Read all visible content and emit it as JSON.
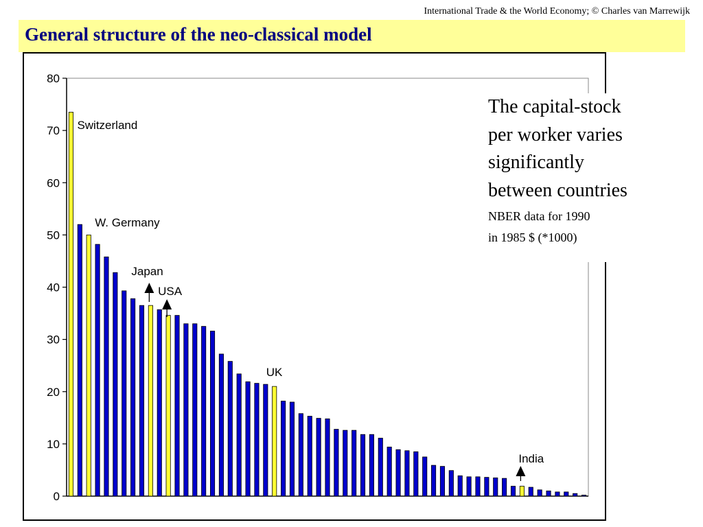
{
  "header": {
    "credit": "International Trade & the World Economy;  © Charles van Marrewijk",
    "title": "General structure of the neo-classical model"
  },
  "note": {
    "headline": "The capital-stock\nper worker varies\nsignificantly\nbetween countries",
    "source": "NBER data for 1990",
    "units": "in 1985 $ (*1000)"
  },
  "colors": {
    "bar_default": "#0000cc",
    "bar_highlight": "#ffff33",
    "title_bg": "#ffff99",
    "title_text": "#000080"
  },
  "chart_data": {
    "type": "bar",
    "ylim": [
      0,
      80
    ],
    "yticks": [
      0,
      10,
      20,
      30,
      40,
      50,
      60,
      70,
      80
    ],
    "ytick_labels": [
      "0",
      "10",
      "20",
      "30",
      "40",
      "50",
      "60",
      "70",
      "80"
    ],
    "grid": false,
    "values": [
      73.5,
      52.0,
      50.0,
      48.2,
      45.8,
      42.8,
      39.3,
      37.8,
      36.5,
      36.5,
      35.7,
      34.6,
      34.6,
      33.0,
      33.0,
      32.5,
      31.6,
      27.2,
      25.8,
      23.4,
      21.9,
      21.6,
      21.4,
      21.0,
      18.2,
      18.0,
      15.8,
      15.3,
      14.9,
      14.8,
      12.8,
      12.6,
      12.6,
      11.8,
      11.8,
      11.1,
      9.4,
      8.9,
      8.7,
      8.5,
      7.5,
      5.9,
      5.7,
      4.9,
      3.9,
      3.7,
      3.7,
      3.6,
      3.5,
      3.4,
      1.9,
      1.9,
      1.7,
      1.2,
      1.0,
      0.8,
      0.8,
      0.5,
      0.2
    ],
    "highlighted": [
      {
        "index": 0,
        "label": "Switzerland"
      },
      {
        "index": 2,
        "label": "W. Germany"
      },
      {
        "index": 9,
        "label": "Japan"
      },
      {
        "index": 11,
        "label": "USA"
      },
      {
        "index": 23,
        "label": "UK"
      },
      {
        "index": 51,
        "label": "India"
      }
    ]
  }
}
